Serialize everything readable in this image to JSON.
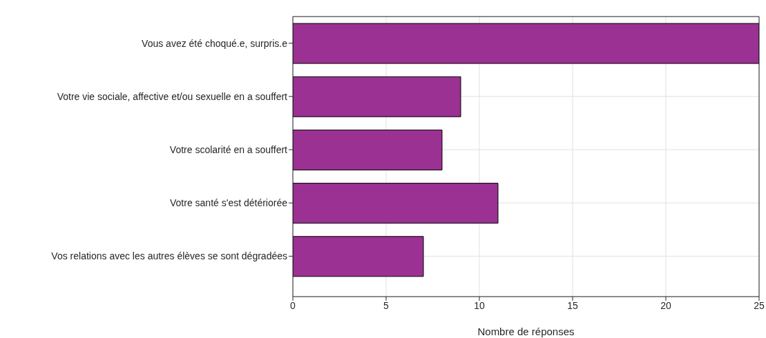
{
  "chart_data": {
    "type": "bar",
    "orientation": "horizontal",
    "xlabel": "Nombre de réponses",
    "categories": [
      "Vous avez été choqué.e, surpris.e",
      "Votre vie sociale, affective et/ou sexuelle en a souffert",
      "Votre scolarité en a souffert",
      "Votre santé s'est détériorée",
      "Vos relations avec les autres élèves se sont dégradées"
    ],
    "values": [
      25,
      9,
      8,
      11,
      7
    ],
    "color": "#9b3193",
    "xlim": [
      0,
      25
    ],
    "xticks": [
      0,
      5,
      10,
      15,
      20,
      25
    ],
    "grid": true
  }
}
